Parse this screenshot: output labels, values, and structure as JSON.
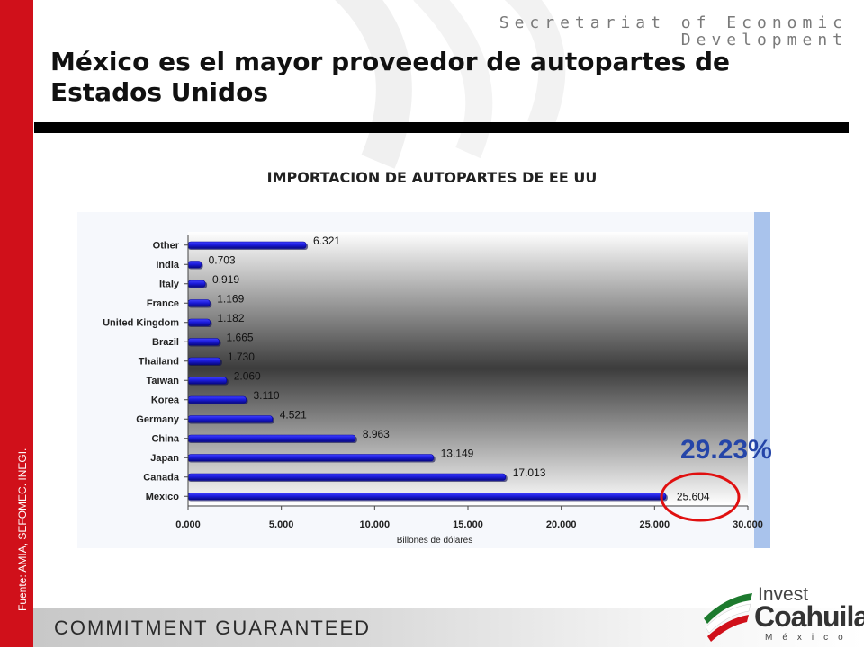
{
  "header": {
    "organization_line1": "Secretariat of Economic",
    "organization_line2": "Development",
    "title": "México es el mayor proveedor de autopartes de Estados Unidos",
    "source": "Fuente: AMIA, SEFOMEC. INEGI."
  },
  "callout": {
    "percent": "29.23%"
  },
  "footer": {
    "slogan": "COMMITMENT GUARANTEED",
    "logo_invest": "Invest",
    "logo_coahuila": "Coahuila",
    "logo_mexico": "México"
  },
  "colors": {
    "brand_red": "#d0101a",
    "bar": "#1a1ad8",
    "callout_blue": "#2545a8",
    "circle": "#e01010"
  },
  "chart_data": {
    "type": "bar",
    "orientation": "horizontal",
    "title": "IMPORTACION DE AUTOPARTES DE EE UU",
    "xlabel": "Billones de dólares",
    "ylabel": "",
    "categories": [
      "Other",
      "India",
      "Italy",
      "France",
      "United Kingdom",
      "Brazil",
      "Thailand",
      "Taiwan",
      "Korea",
      "Germany",
      "China",
      "Japan",
      "Canada",
      "Mexico"
    ],
    "values": [
      6.321,
      0.703,
      0.919,
      1.169,
      1.182,
      1.665,
      1.73,
      2.06,
      3.11,
      4.521,
      8.963,
      13.149,
      17.013,
      25.604
    ],
    "value_labels": [
      "6.321",
      "0.703",
      "0.919",
      "1.169",
      "1.182",
      "1.665",
      "1.730",
      "2.060",
      "3.110",
      "4.521",
      "8.963",
      "13.149",
      "17.013",
      "25.604"
    ],
    "xlim": [
      0,
      30
    ],
    "xticks": [
      "0.000",
      "5.000",
      "10.000",
      "15.000",
      "20.000",
      "25.000",
      "30.000"
    ],
    "grid": false
  }
}
